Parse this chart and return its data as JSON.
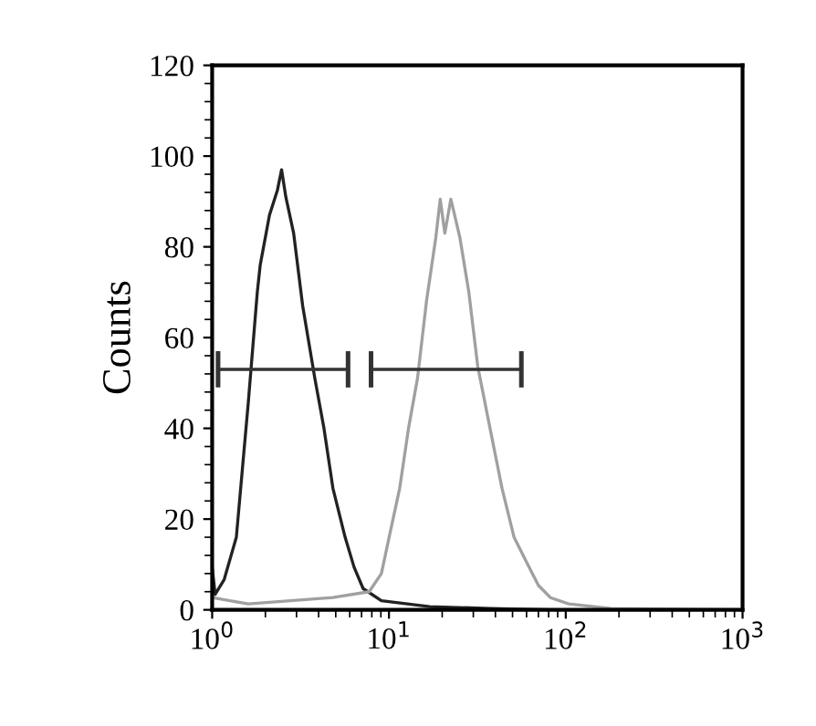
{
  "chart_data": {
    "type": "line",
    "ylabel": "Counts",
    "log": "x",
    "xlim": [
      1,
      1000
    ],
    "ylim": [
      0,
      120
    ],
    "xticks": [
      {
        "value": 1,
        "label": "10$^{0}$"
      },
      {
        "value": 10,
        "label": "10$^{1}$"
      },
      {
        "value": 100,
        "label": "10$^{2}$"
      },
      {
        "value": 1000,
        "label": "10$^{3}$"
      }
    ],
    "yticks": [
      0,
      20,
      40,
      60,
      80,
      100,
      120
    ],
    "grid": false,
    "legend": false,
    "series": [
      {
        "color": "#222222",
        "x": [
          1,
          1.04,
          1.17,
          1.37,
          1.6,
          1.8,
          1.87,
          2.11,
          2.34,
          2.47,
          2.61,
          2.89,
          3.25,
          3.81,
          4.29,
          4.82,
          5.65,
          6.35,
          7.14,
          9.06,
          17,
          37.3,
          81.8,
          1000
        ],
        "values": [
          9.4,
          3.4,
          6.7,
          16,
          45.6,
          70,
          76,
          87,
          92.5,
          97,
          91,
          83,
          67,
          51,
          40,
          26.8,
          16,
          9.4,
          4.7,
          2,
          0.7,
          0.3,
          0,
          0
        ]
      },
      {
        "color": "#a0a0a0",
        "x": [
          1,
          1.6,
          4.82,
          7.73,
          9.06,
          10.2,
          11.5,
          12.9,
          14.5,
          16.3,
          18.4,
          19.5,
          20.7,
          22.4,
          25.2,
          28.3,
          31.8,
          37.3,
          43.6,
          51,
          59.7,
          70,
          81.8,
          104,
          180,
          1000
        ],
        "values": [
          2.7,
          1.3,
          2.7,
          4,
          8,
          17.4,
          26.8,
          40,
          51,
          68,
          82,
          90.5,
          83,
          90.5,
          82,
          70,
          53.6,
          40,
          26.8,
          16,
          10.7,
          5.4,
          2.7,
          1.3,
          0.3,
          0
        ]
      },
      {
        "color": "#333333",
        "x": [
          1.08,
          5.87
        ],
        "values": [
          53,
          53
        ],
        "errors": [
          4,
          4
        ]
      },
      {
        "color": "#333333",
        "x": [
          7.92,
          56.1
        ],
        "values": [
          53,
          53
        ],
        "errors": [
          4,
          4
        ]
      }
    ]
  }
}
